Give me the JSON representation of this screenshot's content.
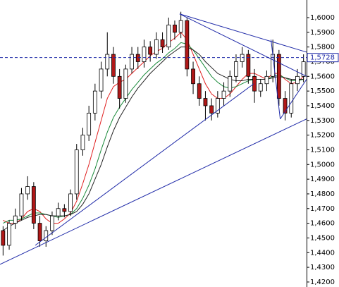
{
  "chart_data": {
    "type": "candlestick",
    "open": [
      1.455,
      1.445,
      1.46,
      1.465,
      1.48,
      1.485,
      1.46,
      1.448,
      1.455,
      1.465,
      1.47,
      1.468,
      1.48,
      1.51,
      1.52,
      1.535,
      1.55,
      1.565,
      1.575,
      1.56,
      1.545,
      1.565,
      1.575,
      1.57,
      1.58,
      1.575,
      1.585,
      1.58,
      1.595,
      1.59,
      1.598,
      1.565,
      1.555,
      1.545,
      1.54,
      1.535,
      1.545,
      1.55,
      1.56,
      1.57,
      1.575,
      1.56,
      1.55,
      1.555,
      1.56,
      1.575,
      1.545,
      1.535,
      1.555,
      1.56
    ],
    "high": [
      1.458,
      1.462,
      1.47,
      1.484,
      1.492,
      1.488,
      1.465,
      1.458,
      1.468,
      1.474,
      1.473,
      1.483,
      1.514,
      1.525,
      1.54,
      1.555,
      1.57,
      1.59,
      1.58,
      1.565,
      1.568,
      1.58,
      1.58,
      1.585,
      1.584,
      1.59,
      1.59,
      1.6,
      1.598,
      1.604,
      1.6,
      1.57,
      1.56,
      1.55,
      1.545,
      1.55,
      1.556,
      1.564,
      1.575,
      1.58,
      1.578,
      1.565,
      1.558,
      1.564,
      1.585,
      1.578,
      1.55,
      1.558,
      1.565,
      1.575
    ],
    "low": [
      1.438,
      1.442,
      1.456,
      1.462,
      1.476,
      1.456,
      1.444,
      1.444,
      1.452,
      1.462,
      1.464,
      1.465,
      1.476,
      1.506,
      1.516,
      1.53,
      1.545,
      1.56,
      1.555,
      1.538,
      1.542,
      1.562,
      1.565,
      1.566,
      1.57,
      1.572,
      1.576,
      1.578,
      1.585,
      1.586,
      1.56,
      1.548,
      1.54,
      1.53,
      1.53,
      1.532,
      1.54,
      1.546,
      1.556,
      1.566,
      1.555,
      1.542,
      1.546,
      1.55,
      1.556,
      1.54,
      1.53,
      1.532,
      1.55,
      1.556
    ],
    "close": [
      1.445,
      1.46,
      1.465,
      1.48,
      1.485,
      1.46,
      1.448,
      1.455,
      1.465,
      1.47,
      1.468,
      1.48,
      1.51,
      1.52,
      1.535,
      1.55,
      1.565,
      1.575,
      1.56,
      1.545,
      1.565,
      1.575,
      1.57,
      1.58,
      1.575,
      1.585,
      1.58,
      1.595,
      1.59,
      1.598,
      1.565,
      1.555,
      1.545,
      1.54,
      1.535,
      1.545,
      1.55,
      1.56,
      1.57,
      1.575,
      1.56,
      1.55,
      1.555,
      1.56,
      1.575,
      1.545,
      1.535,
      1.555,
      1.56,
      1.57
    ],
    "up_color": "#ffffff",
    "down_color": "#b01818",
    "series": [
      {
        "color": "#e02020",
        "values": [
          1.462,
          1.46,
          1.46,
          1.463,
          1.468,
          1.47,
          1.468,
          1.463,
          1.46,
          1.46,
          1.463,
          1.467,
          1.475,
          1.487,
          1.5,
          1.515,
          1.53,
          1.545,
          1.553,
          1.556,
          1.558,
          1.562,
          1.566,
          1.57,
          1.574,
          1.577,
          1.579,
          1.583,
          1.586,
          1.59,
          1.585,
          1.575,
          1.565,
          1.555,
          1.548,
          1.545,
          1.545,
          1.548,
          1.553,
          1.558,
          1.562,
          1.562,
          1.56,
          1.558,
          1.562,
          1.562,
          1.558,
          1.555,
          1.556,
          1.56
        ]
      },
      {
        "color": "#1a8a3a",
        "values": [
          1.46,
          1.462,
          1.462,
          1.463,
          1.465,
          1.467,
          1.467,
          1.466,
          1.465,
          1.464,
          1.465,
          1.466,
          1.47,
          1.477,
          1.486,
          1.497,
          1.51,
          1.522,
          1.532,
          1.539,
          1.545,
          1.551,
          1.556,
          1.561,
          1.565,
          1.569,
          1.572,
          1.576,
          1.579,
          1.583,
          1.582,
          1.578,
          1.572,
          1.566,
          1.56,
          1.556,
          1.553,
          1.552,
          1.553,
          1.555,
          1.557,
          1.558,
          1.558,
          1.558,
          1.56,
          1.561,
          1.559,
          1.557,
          1.557,
          1.558
        ]
      },
      {
        "color": "#222222",
        "values": [
          1.455,
          1.458,
          1.46,
          1.462,
          1.464,
          1.465,
          1.466,
          1.466,
          1.465,
          1.465,
          1.465,
          1.466,
          1.468,
          1.473,
          1.48,
          1.49,
          1.5,
          1.512,
          1.523,
          1.532,
          1.539,
          1.546,
          1.552,
          1.557,
          1.562,
          1.566,
          1.57,
          1.574,
          1.577,
          1.58,
          1.58,
          1.578,
          1.575,
          1.57,
          1.566,
          1.562,
          1.56,
          1.558,
          1.557,
          1.557,
          1.558,
          1.558,
          1.558,
          1.558,
          1.559,
          1.56,
          1.559,
          1.558,
          1.558,
          1.558
        ]
      }
    ],
    "trendlines": [
      {
        "x": [
          28.8,
          49.5
        ],
        "y": [
          1.6025,
          1.5765
        ],
        "color": "#1f2aa8"
      },
      {
        "x": [
          28.8,
          49.5
        ],
        "y": [
          1.6025,
          1.56
        ],
        "color": "#1f2aa8"
      },
      {
        "x": [
          -0.5,
          49.5
        ],
        "y": [
          1.432,
          1.531
        ],
        "color": "#1f2aa8"
      },
      {
        "x": [
          5.25,
          40.9
        ],
        "y": [
          1.445,
          1.555
        ],
        "color": "#1f2aa8"
      },
      {
        "x": [
          45.2,
          49.5
        ],
        "y": [
          1.531,
          1.558
        ],
        "color": "#1f2aa8"
      },
      {
        "x": [
          43.7,
          45.2
        ],
        "y": [
          1.585,
          1.531
        ],
        "color": "#1f2aa8"
      }
    ],
    "hline": {
      "value": 1.5728,
      "label": "1,5728",
      "color": "#1f2aa8"
    },
    "xlim": [
      -0.5,
      49.5
    ],
    "ylim": [
      1.4166,
      1.612
    ],
    "yticks": [
      {
        "value": 1.42,
        "label": "1,4200"
      },
      {
        "value": 1.43,
        "label": "1,4300"
      },
      {
        "value": 1.44,
        "label": "1,4400"
      },
      {
        "value": 1.45,
        "label": "1,4500"
      },
      {
        "value": 1.46,
        "label": "1,4600"
      },
      {
        "value": 1.47,
        "label": "1,4700"
      },
      {
        "value": 1.48,
        "label": "1,4800"
      },
      {
        "value": 1.49,
        "label": "1,4900"
      },
      {
        "value": 1.5,
        "label": "1,5000"
      },
      {
        "value": 1.51,
        "label": "1,5100"
      },
      {
        "value": 1.52,
        "label": "1,5200"
      },
      {
        "value": 1.53,
        "label": "1,5300"
      },
      {
        "value": 1.54,
        "label": "1,5400"
      },
      {
        "value": 1.55,
        "label": "1,5500"
      },
      {
        "value": 1.56,
        "label": "1,5600"
      },
      {
        "value": 1.57,
        "label": "1,5700"
      },
      {
        "value": 1.58,
        "label": "1,5800"
      },
      {
        "value": 1.59,
        "label": "1,5900"
      },
      {
        "value": 1.6,
        "label": "1,6000"
      }
    ]
  }
}
